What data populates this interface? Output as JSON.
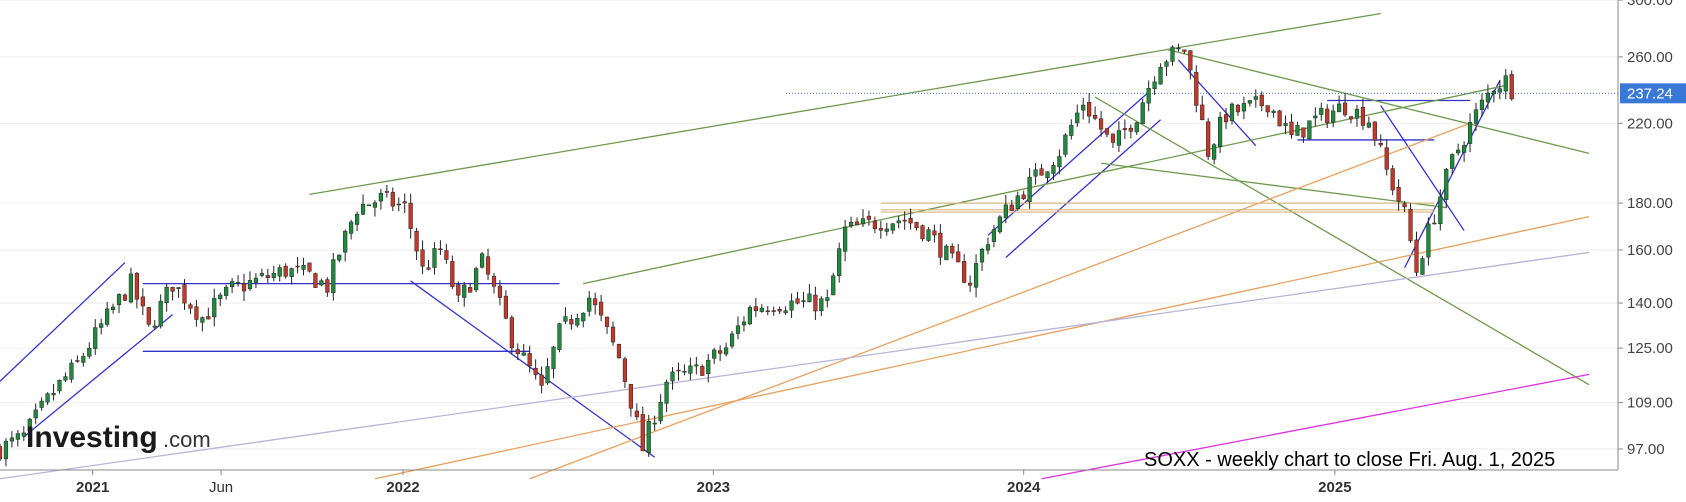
{
  "caption": "SOXX - weekly chart to close Fri. Aug. 1, 2025",
  "logo": {
    "main": "Investing",
    "suffix": ".com"
  },
  "colors": {
    "up": "#1f8a3c",
    "down": "#c0392b",
    "blue_line": "#3333cc",
    "green_line": "#6e9a4e",
    "orange_line": "#e8a060",
    "lavender_line": "#b8b4d8",
    "magenta_line": "#dd33dd",
    "tan_band": "#d8b880",
    "price_tag": "#3a78d8",
    "grid": "#eeeeee"
  },
  "chart_data": {
    "type": "candlestick",
    "interval": "weekly",
    "title": "SOXX - weekly chart to close Fri. Aug. 1, 2025",
    "yscale": "log",
    "ylim": [
      92,
      300
    ],
    "xlim": [
      "2020-09-14",
      "2025-11-30"
    ],
    "y_ticks": [
      "300.00",
      "260.00",
      "220.00",
      "180.00",
      "160.00",
      "140.00",
      "125.00",
      "109.00",
      "97.00"
    ],
    "x_ticks": [
      {
        "date": "2021-01-01",
        "label": "2021",
        "major": true
      },
      {
        "date": "2021-06-01",
        "label": "Jun",
        "major": false
      },
      {
        "date": "2022-01-01",
        "label": "2022",
        "major": true
      },
      {
        "date": "2023-01-01",
        "label": "2023",
        "major": true
      },
      {
        "date": "2024-01-01",
        "label": "2024",
        "major": true
      },
      {
        "date": "2025-01-01",
        "label": "2025",
        "major": true
      }
    ],
    "last_price": "237.24",
    "close_anchors": [
      [
        "2020-09-14",
        97
      ],
      [
        "2020-10-12",
        100
      ],
      [
        "2020-11-16",
        112
      ],
      [
        "2020-12-14",
        120
      ],
      [
        "2021-02-15",
        147
      ],
      [
        "2021-03-08",
        131
      ],
      [
        "2021-04-05",
        147
      ],
      [
        "2021-05-10",
        135
      ],
      [
        "2021-06-14",
        145
      ],
      [
        "2021-07-12",
        148
      ],
      [
        "2021-08-16",
        152
      ],
      [
        "2021-09-13",
        150
      ],
      [
        "2021-10-04",
        146
      ],
      [
        "2021-11-08",
        178
      ],
      [
        "2021-12-06",
        182
      ],
      [
        "2022-01-03",
        178
      ],
      [
        "2022-01-24",
        152
      ],
      [
        "2022-02-14",
        160
      ],
      [
        "2022-03-07",
        140
      ],
      [
        "2022-04-04",
        155
      ],
      [
        "2022-05-09",
        128
      ],
      [
        "2022-06-13",
        112
      ],
      [
        "2022-07-04",
        130
      ],
      [
        "2022-08-08",
        142
      ],
      [
        "2022-09-12",
        122
      ],
      [
        "2022-10-10",
        97
      ],
      [
        "2022-11-07",
        115
      ],
      [
        "2022-12-12",
        118
      ],
      [
        "2023-01-16",
        125
      ],
      [
        "2023-02-13",
        138
      ],
      [
        "2023-03-13",
        140
      ],
      [
        "2023-04-17",
        140
      ],
      [
        "2023-05-15",
        140
      ],
      [
        "2023-06-05",
        168
      ],
      [
        "2023-07-17",
        172
      ],
      [
        "2023-08-14",
        173
      ],
      [
        "2023-09-11",
        167
      ],
      [
        "2023-10-09",
        155
      ],
      [
        "2023-10-30",
        148
      ],
      [
        "2023-11-20",
        165
      ],
      [
        "2023-12-18",
        180
      ],
      [
        "2024-01-15",
        192
      ],
      [
        "2024-02-12",
        205
      ],
      [
        "2024-03-11",
        232
      ],
      [
        "2024-04-15",
        207
      ],
      [
        "2024-05-13",
        225
      ],
      [
        "2024-06-10",
        258
      ],
      [
        "2024-07-08",
        265
      ],
      [
        "2024-08-05",
        205
      ],
      [
        "2024-08-26",
        225
      ],
      [
        "2024-09-16",
        228
      ],
      [
        "2024-10-14",
        232
      ],
      [
        "2024-11-11",
        212
      ],
      [
        "2024-12-09",
        222
      ],
      [
        "2025-01-13",
        230
      ],
      [
        "2025-02-10",
        222
      ],
      [
        "2025-03-03",
        195
      ],
      [
        "2025-03-24",
        175
      ],
      [
        "2025-04-07",
        152
      ],
      [
        "2025-04-28",
        175
      ],
      [
        "2025-05-19",
        200
      ],
      [
        "2025-06-16",
        225
      ],
      [
        "2025-07-07",
        242
      ],
      [
        "2025-07-21",
        245
      ],
      [
        "2025-08-01",
        237
      ]
    ],
    "support_resistance_lines": [
      {
        "color": "blue",
        "start": [
          "2021-03-01",
          147
        ],
        "end": [
          "2022-07-04",
          147
        ]
      },
      {
        "color": "blue",
        "start": [
          "2021-03-01",
          124
        ],
        "end": [
          "2022-05-30",
          124
        ]
      },
      {
        "color": "blue",
        "start": [
          "2020-09-14",
          115
        ],
        "end": [
          "2021-02-08",
          155
        ]
      },
      {
        "color": "blue",
        "start": [
          "2020-10-12",
          100
        ],
        "end": [
          "2021-04-05",
          136
        ]
      },
      {
        "color": "blue",
        "start": [
          "2022-01-10",
          148
        ],
        "end": [
          "2022-10-24",
          95
        ]
      },
      {
        "color": "blue",
        "start": [
          "2023-11-20",
          166
        ],
        "end": [
          "2024-05-27",
          238
        ]
      },
      {
        "color": "blue",
        "start": [
          "2023-12-11",
          157
        ],
        "end": [
          "2024-06-10",
          222
        ]
      },
      {
        "color": "blue",
        "start": [
          "2024-07-01",
          258
        ],
        "end": [
          "2024-09-30",
          208
        ]
      },
      {
        "color": "blue",
        "start": [
          "2024-11-18",
          211
        ],
        "end": [
          "2025-04-28",
          211
        ]
      },
      {
        "color": "blue",
        "start": [
          "2024-12-23",
          233
        ],
        "end": [
          "2025-06-09",
          233
        ]
      },
      {
        "color": "blue",
        "start": [
          "2025-02-24",
          230
        ],
        "end": [
          "2025-06-02",
          168
        ]
      },
      {
        "color": "blue",
        "start": [
          "2025-03-24",
          153
        ],
        "end": [
          "2025-07-14",
          245
        ]
      },
      {
        "color": "green",
        "start": [
          "2021-09-13",
          184
        ],
        "end": [
          "2025-02-24",
          290
        ]
      },
      {
        "color": "green",
        "start": [
          "2022-08-01",
          147
        ],
        "end": [
          "2025-07-21",
          242
        ]
      },
      {
        "color": "green",
        "start": [
          "2024-06-17",
          265
        ],
        "end": [
          "2025-10-27",
          204
        ]
      },
      {
        "color": "green",
        "start": [
          "2024-03-25",
          235
        ],
        "end": [
          "2025-10-27",
          114
        ]
      },
      {
        "color": "green",
        "start": [
          "2024-04-01",
          199
        ],
        "end": [
          "2025-05-12",
          178
        ]
      },
      {
        "color": "orange",
        "start": [
          "2021-11-29",
          90
        ],
        "end": [
          "2025-10-27",
          174
        ]
      },
      {
        "color": "orange",
        "start": [
          "2022-05-30",
          90
        ],
        "end": [
          "2025-06-09",
          220
        ]
      },
      {
        "color": "lavender",
        "start": [
          "2020-09-14",
          90
        ],
        "end": [
          "2025-10-27",
          159
        ]
      },
      {
        "color": "magenta",
        "start": [
          "2024-01-22",
          90
        ],
        "end": [
          "2025-10-27",
          117
        ]
      },
      {
        "color": "tan",
        "start": [
          "2023-07-17",
          180
        ],
        "end": [
          "2025-04-28",
          180
        ]
      },
      {
        "color": "tan",
        "start": [
          "2023-07-17",
          177
        ],
        "end": [
          "2025-04-28",
          177
        ]
      },
      {
        "color": "tan",
        "start": [
          "2023-07-17",
          176
        ],
        "end": [
          "2025-04-28",
          176
        ]
      }
    ]
  }
}
